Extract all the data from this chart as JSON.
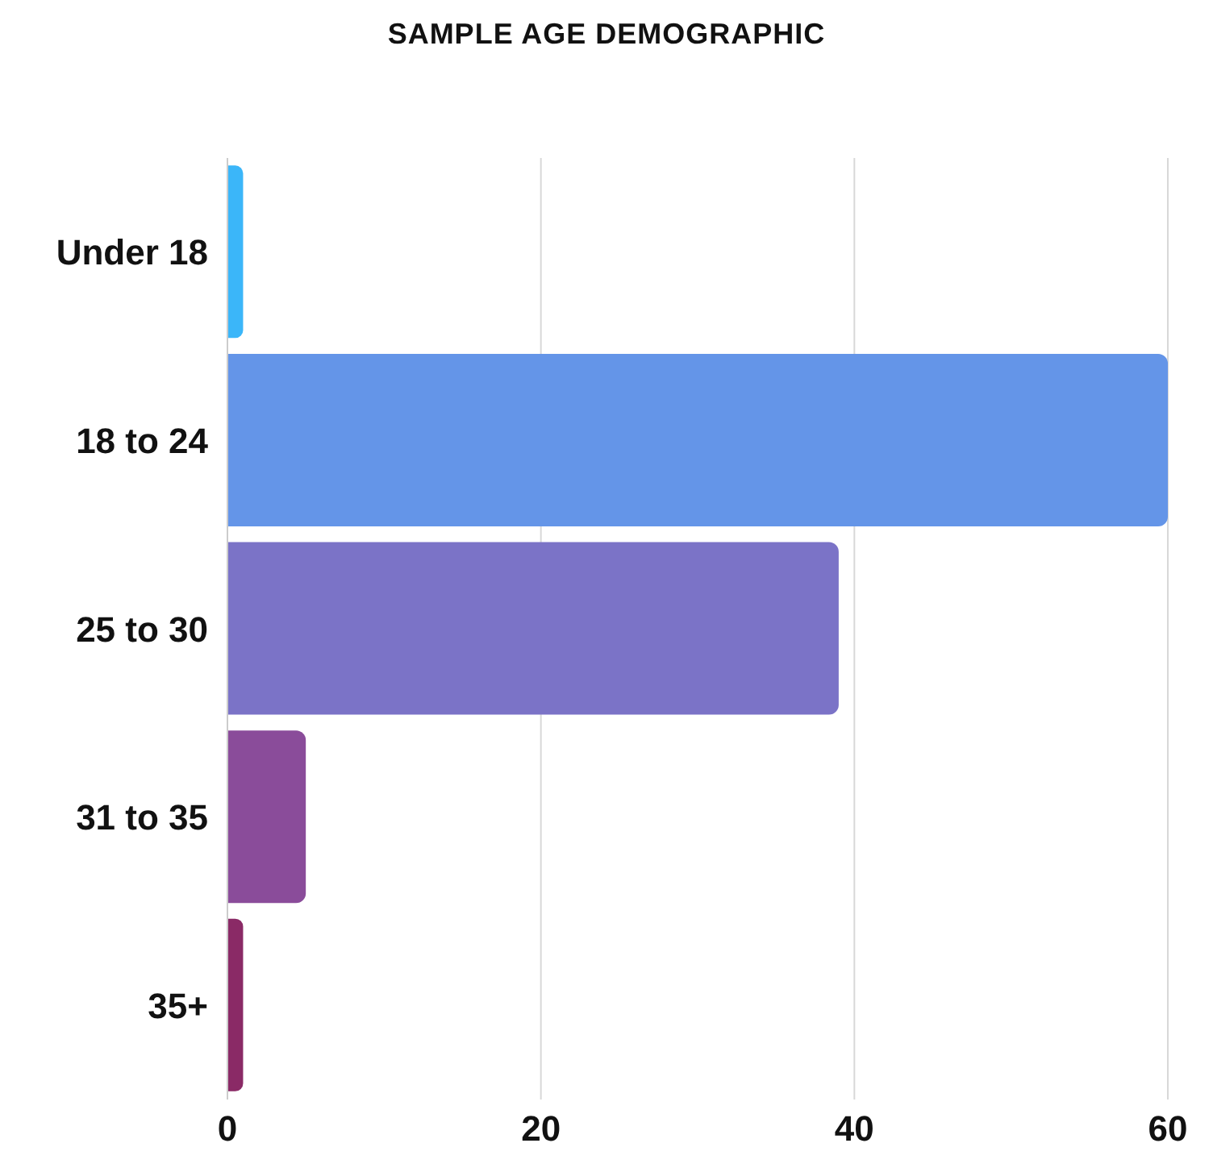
{
  "chart_data": {
    "type": "bar",
    "orientation": "horizontal",
    "title": "SAMPLE AGE DEMOGRAPHIC",
    "categories": [
      "Under 18",
      "18 to 24",
      "25 to 30",
      "31 to 35",
      "35+"
    ],
    "values": [
      1,
      60,
      39,
      5,
      1
    ],
    "colors": [
      "#3bb6f9",
      "#6495e8",
      "#7b73c7",
      "#8a4c9a",
      "#8a2a66"
    ],
    "xlim": [
      0,
      60
    ],
    "xticks": [
      0,
      20,
      40,
      60
    ],
    "grid": "x"
  }
}
